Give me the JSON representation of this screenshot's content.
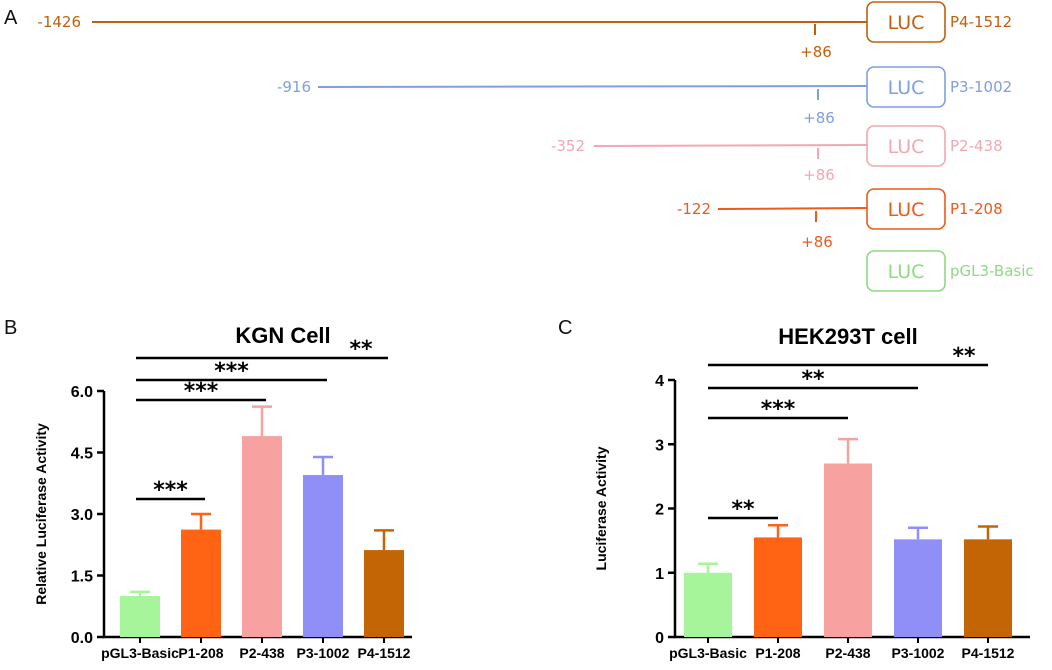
{
  "panel_labels": {
    "a": "A",
    "b": "B",
    "c": "C"
  },
  "diagram": {
    "box_label": "LUC",
    "tss_label": "+86",
    "constructs": [
      {
        "name": "P4-1512",
        "start_label": "-1426",
        "color": "#c0600f"
      },
      {
        "name": "P3-1002",
        "start_label": "-916",
        "color": "#7f9fe0"
      },
      {
        "name": "P2-438",
        "start_label": "-352",
        "color": "#f2a8b0"
      },
      {
        "name": "P1-208",
        "start_label": "-122",
        "color": "#ec5a1c"
      },
      {
        "name": "pGL3-Basic",
        "start_label": "",
        "color": "#8fd884"
      }
    ]
  },
  "chart_data": [
    {
      "type": "bar",
      "title": "KGN Cell",
      "xlabel": "",
      "ylabel": "Relative Luciferase Activity",
      "ylim": [
        0,
        6
      ],
      "yticks": [
        "0.0",
        "1.5",
        "3.0",
        "4.5",
        "6.0"
      ],
      "categories": [
        "pGL3-Basic",
        "P1-208",
        "P2-438",
        "P3-1002",
        "P4-1512"
      ],
      "values": [
        1.0,
        2.62,
        4.9,
        3.95,
        2.12
      ],
      "errors": [
        0.1,
        0.38,
        0.72,
        0.44,
        0.48
      ],
      "colors": [
        "#a6f59b",
        "#ff6414",
        "#f7a1a1",
        "#8f8ff7",
        "#c46505"
      ],
      "significance": [
        {
          "from": "pGL3-Basic",
          "to": "P1-208",
          "label": "***"
        },
        {
          "from": "pGL3-Basic",
          "to": "P2-438",
          "label": "***"
        },
        {
          "from": "pGL3-Basic",
          "to": "P3-1002",
          "label": "***"
        },
        {
          "from": "pGL3-Basic",
          "to": "P4-1512",
          "label": "**"
        }
      ]
    },
    {
      "type": "bar",
      "title": "HEK293T cell",
      "xlabel": "",
      "ylabel": "Luciferase Activity",
      "ylim": [
        0,
        4
      ],
      "yticks": [
        "0",
        "1",
        "2",
        "3",
        "4"
      ],
      "categories": [
        "pGL3-Basic",
        "P1-208",
        "P2-438",
        "P3-1002",
        "P4-1512"
      ],
      "values": [
        1.0,
        1.55,
        2.7,
        1.52,
        1.52
      ],
      "errors": [
        0.14,
        0.19,
        0.38,
        0.18,
        0.2
      ],
      "colors": [
        "#a6f59b",
        "#ff6414",
        "#f7a1a1",
        "#8f8ff7",
        "#c46505"
      ],
      "significance": [
        {
          "from": "pGL3-Basic",
          "to": "P1-208",
          "label": "**"
        },
        {
          "from": "pGL3-Basic",
          "to": "P2-438",
          "label": "***"
        },
        {
          "from": "pGL3-Basic",
          "to": "P3-1002",
          "label": "**"
        },
        {
          "from": "pGL3-Basic",
          "to": "P4-1512",
          "label": "**"
        }
      ]
    }
  ]
}
